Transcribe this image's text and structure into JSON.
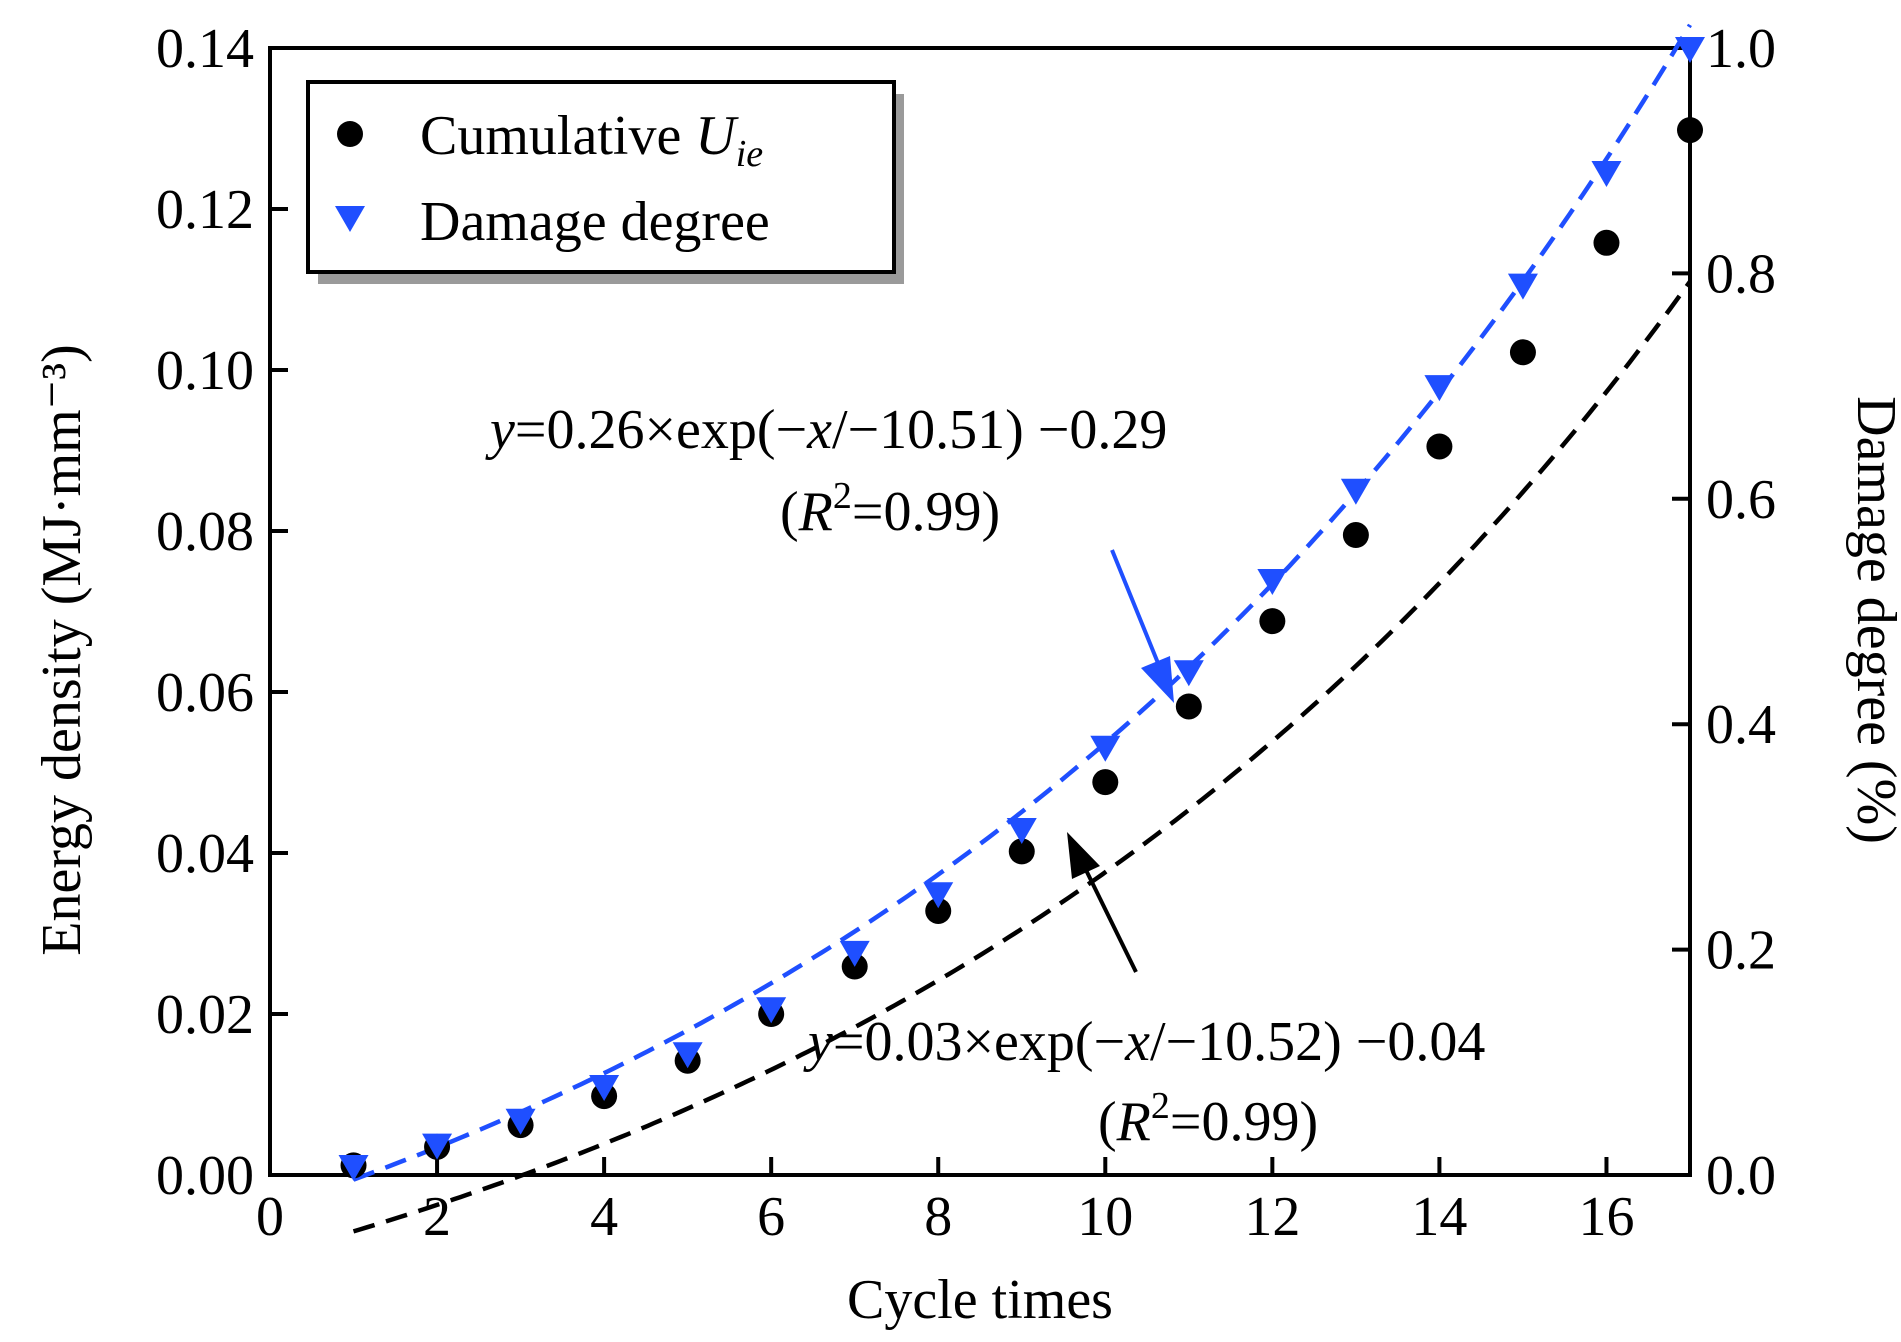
{
  "chart_data": {
    "type": "scatter",
    "xlabel": "Cycle times",
    "ylabel_left": "Energy density (MJ·mm⁻³)",
    "ylabel_right": "Damage degree (%)",
    "xlim": [
      0,
      17
    ],
    "ylim_left": [
      0,
      0.14
    ],
    "ylim_right": [
      0,
      1.0
    ],
    "xticks": [
      0,
      2,
      4,
      6,
      8,
      10,
      12,
      14,
      16
    ],
    "xtick_labels": [
      "0",
      "2",
      "4",
      "6",
      "8",
      "10",
      "12",
      "14",
      "16"
    ],
    "yticks_left": [
      0,
      0.02,
      0.04,
      0.06,
      0.08,
      0.1,
      0.12,
      0.14
    ],
    "ytick_labels_left": [
      "0.00",
      "0.02",
      "0.04",
      "0.06",
      "0.08",
      "0.10",
      "0.12",
      "0.14"
    ],
    "yticks_right": [
      0,
      0.2,
      0.4,
      0.6,
      0.8,
      1.0
    ],
    "ytick_labels_right": [
      "0.0",
      "0.2",
      "0.4",
      "0.6",
      "0.8",
      "1.0"
    ],
    "grid": false,
    "legend_position": "top-left",
    "legend": [
      {
        "label": "Cumulative ",
        "label_sub": "U",
        "label_subsub": "ie",
        "marker": "circle",
        "color": "#000000"
      },
      {
        "label": "Damage degree",
        "marker": "triangle-down",
        "color": "#1f4fff"
      }
    ],
    "series": [
      {
        "name": "Cumulative Uie",
        "axis": "left",
        "color": "#000000",
        "marker": "circle",
        "x": [
          1,
          2,
          3,
          4,
          5,
          6,
          7,
          8,
          9,
          10,
          11,
          12,
          13,
          14,
          15,
          16,
          17
        ],
        "y": [
          0.0012,
          0.0035,
          0.0062,
          0.0098,
          0.0142,
          0.02,
          0.0259,
          0.0328,
          0.0402,
          0.0488,
          0.0582,
          0.0688,
          0.0795,
          0.0905,
          0.1022,
          0.1158,
          0.1298
        ],
        "fit": {
          "a": 0.03,
          "t": 10.52,
          "c": -0.04,
          "x_range": [
            1,
            17
          ]
        }
      },
      {
        "name": "Damage degree",
        "axis": "right",
        "color": "#1f4fff",
        "marker": "triangle-down",
        "x": [
          1,
          2,
          3,
          4,
          5,
          6,
          7,
          8,
          9,
          10,
          11,
          12,
          13,
          14,
          15,
          16,
          17
        ],
        "y": [
          0.008,
          0.027,
          0.049,
          0.079,
          0.108,
          0.148,
          0.198,
          0.25,
          0.307,
          0.38,
          0.447,
          0.528,
          0.608,
          0.7,
          0.79,
          0.89,
          1.0
        ],
        "fit": {
          "a": 0.26,
          "t": 10.51,
          "c": -0.29,
          "x_range": [
            1,
            17
          ]
        }
      }
    ],
    "annotations": [
      {
        "target_series": "Damage degree",
        "eq_var": "y",
        "eq_main": "=0.26×exp(−",
        "eq_var2": "x",
        "eq_tail": "/−10.51) −0.29",
        "r2_open": "(",
        "r2_var": "R",
        "r2_sup": "2",
        "r2_close": "=0.99)",
        "arrow_color": "#1f4fff"
      },
      {
        "target_series": "Cumulative Uie",
        "eq_var": "y",
        "eq_main": "=0.03×exp(−",
        "eq_var2": "x",
        "eq_tail": "/−10.52) −0.04",
        "r2_open": "(",
        "r2_var": "R",
        "r2_sup": "2",
        "r2_close": "=0.99)",
        "arrow_color": "#000000"
      }
    ]
  }
}
